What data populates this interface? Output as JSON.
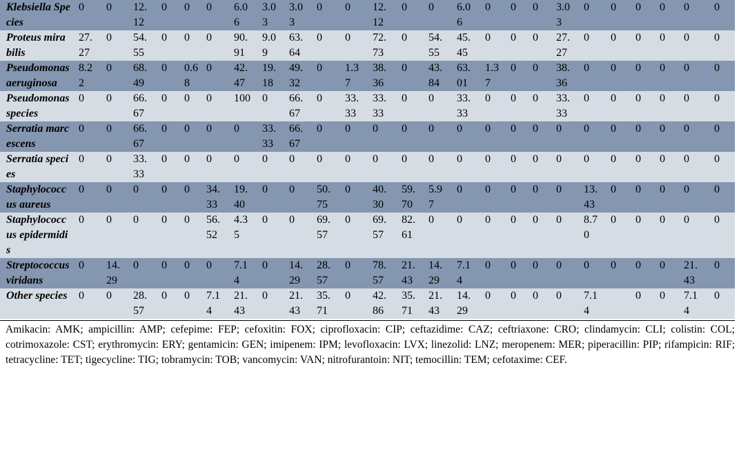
{
  "table": {
    "rows": [
      {
        "name": "Klebsiella Species",
        "cells": [
          "0",
          "0",
          "12.12",
          "0",
          "0",
          "0",
          "6.06",
          "3.03",
          "3.03",
          "0",
          "0",
          "12.12",
          "0",
          "0",
          "6.06",
          "0",
          "0",
          "0",
          "3.03",
          "0",
          "0",
          "0",
          "0",
          "0",
          "0"
        ]
      },
      {
        "name": "Proteus mirabilis",
        "cells": [
          "27.27",
          "0",
          "54.55",
          "0",
          "0",
          "0",
          "90.91",
          "9.09",
          "63.64",
          "0",
          "0",
          "72.73",
          "0",
          "54.55",
          "45.45",
          "0",
          "0",
          "0",
          "27.27",
          "0",
          "0",
          "0",
          "0",
          "0",
          "0"
        ]
      },
      {
        "name": "Pseudomonas aeruginosa",
        "cells": [
          "8.22",
          "0",
          "68.49",
          "0",
          "0.68",
          "0",
          "42.47",
          "19.18",
          "49.32",
          "0",
          "1.37",
          "38.36",
          "0",
          "43.84",
          "63.01",
          "1.37",
          "0",
          "0",
          "38.36",
          "0",
          "0",
          "0",
          "0",
          "0",
          "0"
        ]
      },
      {
        "name": "Pseudomonas species",
        "cells": [
          "0",
          "0",
          "66.67",
          "0",
          "0",
          "0",
          "100",
          "0",
          "66.67",
          "0",
          "33.33",
          "33.33",
          "0",
          "0",
          "33.33",
          "0",
          "0",
          "0",
          "33.33",
          "0",
          "0",
          "0",
          "0",
          "0",
          "0"
        ]
      },
      {
        "name": "Serratia marcescens",
        "cells": [
          "0",
          "0",
          "66.67",
          "0",
          "0",
          "0",
          "0",
          "33.33",
          "66.67",
          "0",
          "0",
          "0",
          "0",
          "0",
          "0",
          "0",
          "0",
          "0",
          "0",
          "0",
          "0",
          "0",
          "0",
          "0",
          "0"
        ]
      },
      {
        "name": "Serratia species",
        "cells": [
          "0",
          "0",
          "33.33",
          "0",
          "0",
          "0",
          "0",
          "0",
          "0",
          "0",
          "0",
          "0",
          "0",
          "0",
          "0",
          "0",
          "0",
          "0",
          "0",
          "0",
          "0",
          "0",
          "0",
          "0",
          "0"
        ]
      },
      {
        "name": "Staphylococcus aureus",
        "cells": [
          "0",
          "0",
          "0",
          "0",
          "0",
          "34.33",
          "19.40",
          "0",
          "0",
          "50.75",
          "0",
          "40.30",
          "59.70",
          "5.97",
          "0",
          "0",
          "0",
          "0",
          "0",
          "13.43",
          "0",
          "0",
          "0",
          "0",
          "0"
        ]
      },
      {
        "name": "Staphylococcus epidermidis",
        "cells": [
          "0",
          "0",
          "0",
          "0",
          "0",
          "56.52",
          "4.35",
          "0",
          "0",
          "69.57",
          "0",
          "69.57",
          "82.61",
          "0",
          "0",
          "0",
          "0",
          "0",
          "0",
          "8.70",
          "0",
          "0",
          "0",
          "0",
          "0"
        ]
      },
      {
        "name": "Streptococcus viridans",
        "cells": [
          "0",
          "14.29",
          "0",
          "0",
          "0",
          "0",
          "7.14",
          "0",
          "14.29",
          "28.57",
          "0",
          "78.57",
          "21.43",
          "14.29",
          "7.14",
          "0",
          "0",
          "0",
          "0",
          "0",
          "0",
          "0",
          "0",
          "21.43",
          "0"
        ]
      },
      {
        "name": "Other species",
        "cells": [
          "0",
          "0",
          "28.57",
          "0",
          "0",
          "7.14",
          "21.43",
          "0",
          "21.43",
          "35.71",
          "0",
          "42.86",
          "35.71",
          "21.43",
          "14.29",
          "0",
          "0",
          "0",
          "0",
          "7.14",
          null,
          "0",
          "0",
          "7.14",
          "0"
        ]
      }
    ]
  },
  "footnote": "Amikacin: AMK; ampicillin: AMP; cefepime: FEP; cefoxitin: FOX; ciprofloxacin: CIP; ceftazidime: CAZ; ceftriaxone: CRO; clindamycin: CLI; colistin: COL; cotrimoxazole: CST; erythromycin: ERY; gentamicin: GEN; imipenem: IPM; levofloxacin: LVX; linezolid: LNZ; meropenem: MER; piperacillin: PIP; rifampicin: RIF; tetracycline: TET; tigecycline: TIG; tobramycin: TOB; vancomycin: VAN; nitrofurantoin: NIT; temocillin: TEM; cefotaxime: CEF."
}
